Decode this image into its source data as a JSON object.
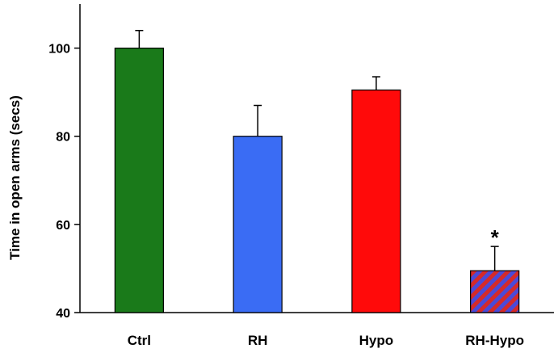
{
  "chart_data": {
    "type": "bar",
    "title": "",
    "xlabel": "",
    "ylabel": "Time in open arms (secs)",
    "ylim": [
      40,
      110
    ],
    "yticks": [
      40,
      60,
      80,
      100
    ],
    "grid": false,
    "categories": [
      "Ctrl",
      "RH",
      "Hypo",
      "RH-Hypo"
    ],
    "values": [
      100,
      80,
      90.5,
      49.5
    ],
    "errors": [
      4,
      7,
      3,
      5.5
    ],
    "colors": [
      "#1a7a1a",
      "#3a6cf4",
      "#ff0a0a",
      "#cc2020"
    ],
    "pattern": [
      null,
      null,
      null,
      "diagonal-stripes-red-blue"
    ],
    "pattern_colors": [
      "#d42a2a",
      "#4a4ad8"
    ],
    "annotations": [
      {
        "category": "RH-Hypo",
        "text": "*"
      }
    ]
  }
}
